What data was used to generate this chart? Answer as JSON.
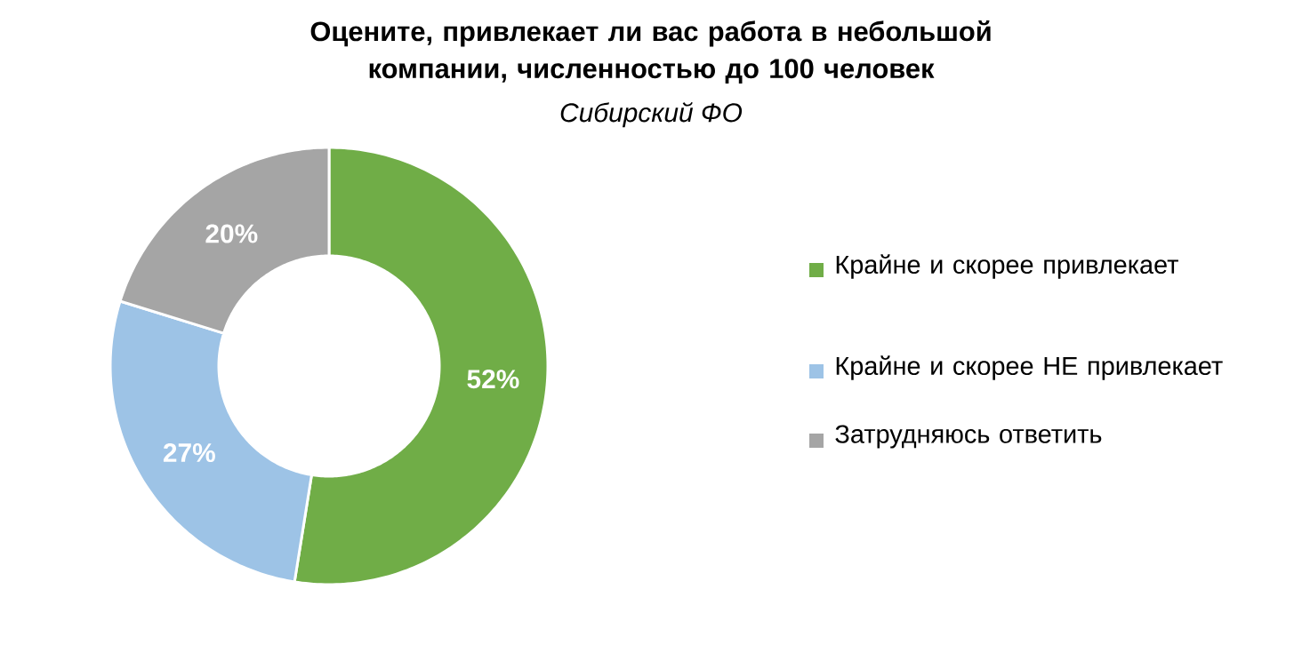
{
  "chart_data": {
    "type": "donut",
    "title": "Оцените, привлекает ли вас работа в небольшой компании, численностью до 100 человек",
    "subtitle": "Сибирский ФО",
    "categories": [
      "Крайне и скорее привлекает",
      "Крайне и скорее НЕ привлекает",
      "Затрудняюсь ответить"
    ],
    "values": [
      52,
      27,
      20
    ],
    "colors": [
      "#70ad47",
      "#9dc3e6",
      "#a5a5a5"
    ],
    "value_labels": [
      "52%",
      "27%",
      "20%"
    ],
    "legend": "right"
  }
}
